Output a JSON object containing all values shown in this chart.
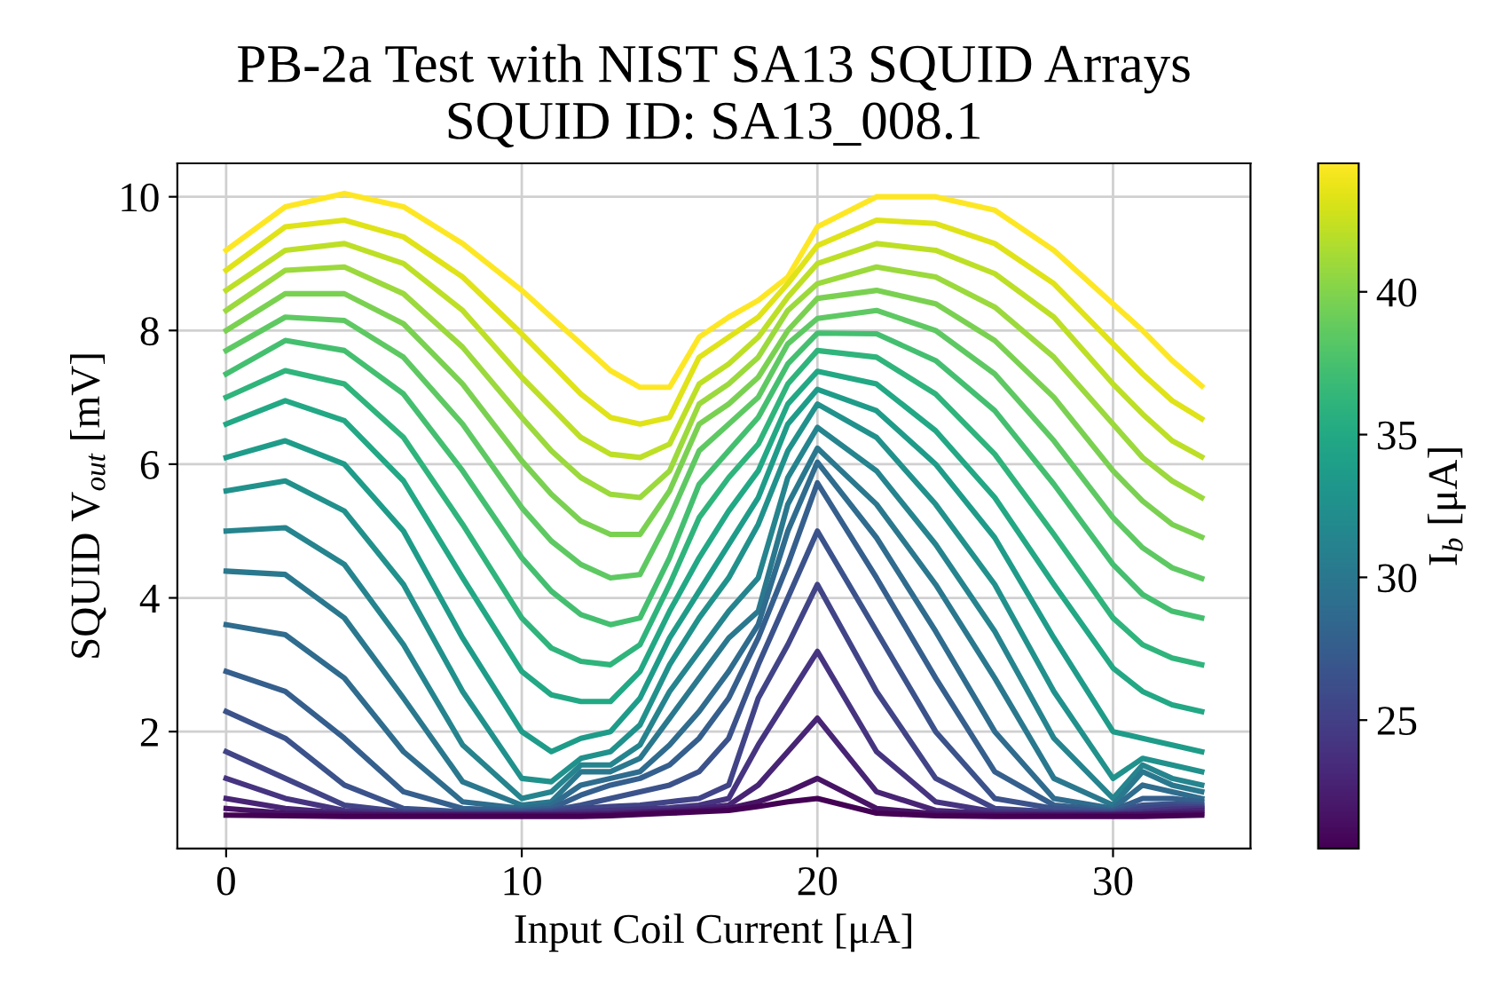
{
  "chart_data": {
    "type": "line",
    "title": "PB-2a Test with NIST SA13 SQUID Arrays\nSQUID ID: SA13_008.1",
    "xlabel": "Input Coil Current [μA]",
    "ylabel": "SQUID V$_{out}$ [mV]",
    "clabel": "I$_{b}$ [μA]",
    "x": [
      0,
      2,
      4,
      6,
      8,
      10,
      11,
      12,
      13,
      14,
      15,
      16,
      17,
      18,
      19,
      20,
      22,
      24,
      26,
      28,
      30,
      31,
      32,
      33
    ],
    "xlim": [
      -1.65,
      34.65
    ],
    "xticks": [
      0,
      10,
      20,
      30
    ],
    "ylim": [
      0.25,
      10.5
    ],
    "yticks": [
      2,
      4,
      6,
      8,
      10
    ],
    "clim": [
      20.5,
      44.5
    ],
    "cticks": [
      25,
      30,
      35,
      40
    ],
    "grid": true,
    "legend": false,
    "marker": "none",
    "line_style": "solid",
    "series": [
      {
        "color": "#fde725",
        "values": [
          9.2,
          9.85,
          10.05,
          9.85,
          9.3,
          8.6,
          8.2,
          7.8,
          7.4,
          7.15,
          7.15,
          7.9,
          8.2,
          8.45,
          8.8,
          9.55,
          10.0,
          10.0,
          9.8,
          9.2,
          8.4,
          8.0,
          7.55,
          7.17
        ]
      },
      {
        "color": "#dfe318",
        "values": [
          8.9,
          9.55,
          9.65,
          9.4,
          8.8,
          7.95,
          7.5,
          7.05,
          6.7,
          6.6,
          6.7,
          7.6,
          7.9,
          8.2,
          8.7,
          9.27,
          9.65,
          9.6,
          9.3,
          8.7,
          7.8,
          7.35,
          6.95,
          6.68
        ]
      },
      {
        "color": "#bddf26",
        "values": [
          8.6,
          9.2,
          9.3,
          9.0,
          8.3,
          7.3,
          6.85,
          6.4,
          6.15,
          6.1,
          6.3,
          7.2,
          7.5,
          7.9,
          8.5,
          9.0,
          9.3,
          9.2,
          8.85,
          8.2,
          7.2,
          6.75,
          6.35,
          6.11
        ]
      },
      {
        "color": "#9bd93c",
        "values": [
          8.3,
          8.9,
          8.95,
          8.55,
          7.75,
          6.7,
          6.2,
          5.8,
          5.55,
          5.5,
          5.9,
          6.9,
          7.2,
          7.6,
          8.3,
          8.7,
          8.95,
          8.8,
          8.35,
          7.6,
          6.6,
          6.1,
          5.75,
          5.5
        ]
      },
      {
        "color": "#7ad151",
        "values": [
          8.0,
          8.55,
          8.55,
          8.1,
          7.2,
          6.05,
          5.55,
          5.15,
          4.95,
          4.95,
          5.6,
          6.6,
          6.9,
          7.3,
          8.0,
          8.48,
          8.6,
          8.4,
          7.85,
          7.0,
          5.9,
          5.45,
          5.1,
          4.91
        ]
      },
      {
        "color": "#5ec962",
        "values": [
          7.7,
          8.2,
          8.15,
          7.6,
          6.6,
          5.35,
          4.85,
          4.5,
          4.3,
          4.35,
          5.2,
          6.2,
          6.6,
          7.0,
          7.8,
          8.18,
          8.3,
          8.0,
          7.35,
          6.35,
          5.2,
          4.75,
          4.45,
          4.29
        ]
      },
      {
        "color": "#44bf70",
        "values": [
          7.35,
          7.85,
          7.7,
          7.05,
          5.9,
          4.6,
          4.1,
          3.75,
          3.6,
          3.7,
          4.6,
          5.7,
          6.2,
          6.7,
          7.5,
          7.96,
          7.95,
          7.55,
          6.8,
          5.7,
          4.5,
          4.05,
          3.8,
          3.7
        ]
      },
      {
        "color": "#2fb47c",
        "values": [
          7.0,
          7.4,
          7.2,
          6.4,
          5.1,
          3.7,
          3.25,
          3.05,
          3.0,
          3.3,
          4.2,
          5.2,
          5.8,
          6.3,
          7.2,
          7.7,
          7.6,
          7.05,
          6.15,
          4.95,
          3.7,
          3.3,
          3.1,
          3.0
        ]
      },
      {
        "color": "#22a884",
        "values": [
          6.6,
          6.95,
          6.65,
          5.75,
          4.3,
          2.9,
          2.55,
          2.45,
          2.45,
          2.9,
          3.8,
          4.6,
          5.3,
          5.9,
          6.9,
          7.39,
          7.2,
          6.5,
          5.5,
          4.2,
          2.95,
          2.6,
          2.4,
          2.3
        ]
      },
      {
        "color": "#1e9c89",
        "values": [
          6.1,
          6.35,
          6.0,
          5.0,
          3.4,
          2.0,
          1.7,
          1.9,
          2.0,
          2.5,
          3.4,
          4.1,
          4.8,
          5.5,
          6.6,
          7.12,
          6.8,
          6.0,
          4.9,
          3.4,
          2.0,
          1.9,
          1.8,
          1.7
        ]
      },
      {
        "color": "#21918c",
        "values": [
          5.6,
          5.75,
          5.3,
          4.2,
          2.6,
          1.3,
          1.25,
          1.6,
          1.7,
          2.1,
          3.0,
          3.7,
          4.3,
          5.1,
          6.2,
          6.9,
          6.4,
          5.4,
          4.2,
          2.6,
          1.3,
          1.6,
          1.5,
          1.4
        ]
      },
      {
        "color": "#25848e",
        "values": [
          5.0,
          5.05,
          4.5,
          3.3,
          1.8,
          1.0,
          1.1,
          1.5,
          1.5,
          1.8,
          2.6,
          3.2,
          3.8,
          4.3,
          5.8,
          6.55,
          5.9,
          4.8,
          3.5,
          1.9,
          1.0,
          1.5,
          1.3,
          1.2
        ]
      },
      {
        "color": "#2a788e",
        "values": [
          4.4,
          4.35,
          3.7,
          2.5,
          1.25,
          0.9,
          0.95,
          1.4,
          1.4,
          1.6,
          2.2,
          2.8,
          3.4,
          3.8,
          5.4,
          6.24,
          5.4,
          4.2,
          2.8,
          1.3,
          0.9,
          1.4,
          1.2,
          1.1
        ]
      },
      {
        "color": "#2f6c8e",
        "values": [
          3.6,
          3.45,
          2.8,
          1.7,
          0.95,
          0.85,
          0.9,
          1.2,
          1.3,
          1.4,
          1.8,
          2.3,
          2.9,
          3.6,
          5.0,
          6.03,
          4.9,
          3.5,
          2.0,
          1.0,
          0.85,
          1.2,
          1.1,
          1.0
        ]
      },
      {
        "color": "#355f8d",
        "values": [
          2.9,
          2.6,
          1.9,
          1.1,
          0.85,
          0.82,
          0.85,
          1.05,
          1.2,
          1.3,
          1.5,
          1.9,
          2.5,
          3.4,
          4.5,
          5.72,
          4.3,
          2.8,
          1.4,
          0.9,
          0.82,
          1.0,
          1.0,
          0.95
        ]
      },
      {
        "color": "#3b528b",
        "values": [
          2.3,
          1.9,
          1.2,
          0.85,
          0.8,
          0.8,
          0.82,
          0.9,
          1.0,
          1.1,
          1.2,
          1.4,
          1.9,
          3.0,
          4.0,
          5.0,
          3.5,
          2.0,
          1.0,
          0.85,
          0.8,
          0.9,
          0.92,
          0.9
        ]
      },
      {
        "color": "#414487",
        "values": [
          1.7,
          1.3,
          0.9,
          0.8,
          0.78,
          0.78,
          0.8,
          0.85,
          0.88,
          0.9,
          0.95,
          1.0,
          1.2,
          2.5,
          3.3,
          4.2,
          2.6,
          1.3,
          0.85,
          0.8,
          0.78,
          0.85,
          0.88,
          0.87
        ]
      },
      {
        "color": "#463480",
        "values": [
          1.3,
          1.0,
          0.82,
          0.78,
          0.77,
          0.77,
          0.78,
          0.8,
          0.82,
          0.84,
          0.86,
          0.9,
          1.0,
          1.8,
          2.5,
          3.2,
          1.7,
          0.95,
          0.8,
          0.78,
          0.77,
          0.8,
          0.84,
          0.85
        ]
      },
      {
        "color": "#482475",
        "values": [
          1.0,
          0.85,
          0.78,
          0.76,
          0.76,
          0.76,
          0.76,
          0.77,
          0.78,
          0.8,
          0.82,
          0.85,
          0.9,
          1.2,
          1.7,
          2.2,
          1.1,
          0.82,
          0.77,
          0.76,
          0.76,
          0.77,
          0.8,
          0.82
        ]
      },
      {
        "color": "#471365",
        "values": [
          0.85,
          0.78,
          0.76,
          0.75,
          0.75,
          0.75,
          0.75,
          0.75,
          0.76,
          0.78,
          0.8,
          0.82,
          0.85,
          0.95,
          1.1,
          1.3,
          0.85,
          0.77,
          0.75,
          0.75,
          0.75,
          0.76,
          0.77,
          0.78
        ]
      },
      {
        "color": "#440154",
        "values": [
          0.75,
          0.74,
          0.73,
          0.73,
          0.73,
          0.73,
          0.73,
          0.73,
          0.74,
          0.76,
          0.78,
          0.8,
          0.82,
          0.88,
          0.95,
          1.0,
          0.78,
          0.74,
          0.73,
          0.73,
          0.73,
          0.73,
          0.74,
          0.75
        ]
      }
    ]
  }
}
